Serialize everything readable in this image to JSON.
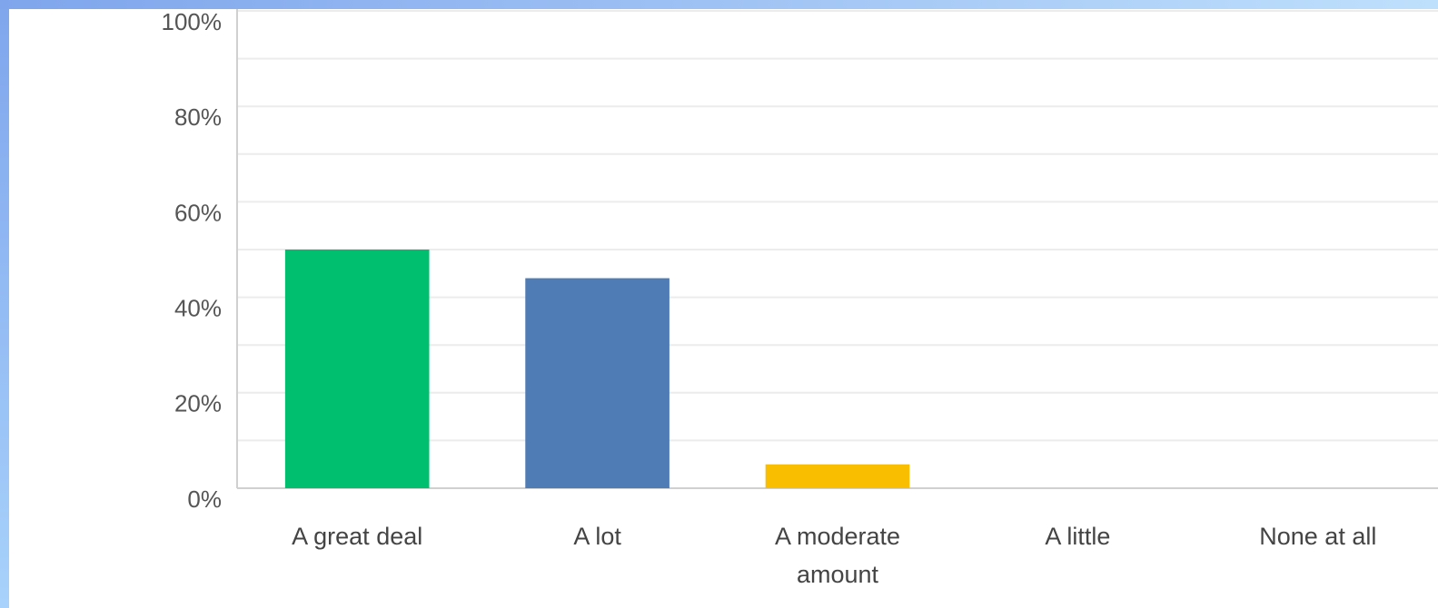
{
  "chart_data": {
    "type": "bar",
    "categories": [
      "A great deal",
      "A lot",
      "A moderate amount",
      "A little",
      "None at all"
    ],
    "values": [
      50,
      44,
      5,
      0,
      0
    ],
    "colors": [
      "#00bf6f",
      "#507cb6",
      "#f9be00",
      "#6bc8cd",
      "#7d4b9e"
    ],
    "ylim": [
      0,
      100
    ],
    "yticks": [
      {
        "value": 0,
        "label": "0%"
      },
      {
        "value": 20,
        "label": "20%"
      },
      {
        "value": 40,
        "label": "40%"
      },
      {
        "value": 60,
        "label": "60%"
      },
      {
        "value": 80,
        "label": "80%"
      },
      {
        "value": 100,
        "label": "100%"
      }
    ],
    "minor_yticks": [
      10,
      30,
      50,
      70,
      90
    ],
    "grid": true
  }
}
